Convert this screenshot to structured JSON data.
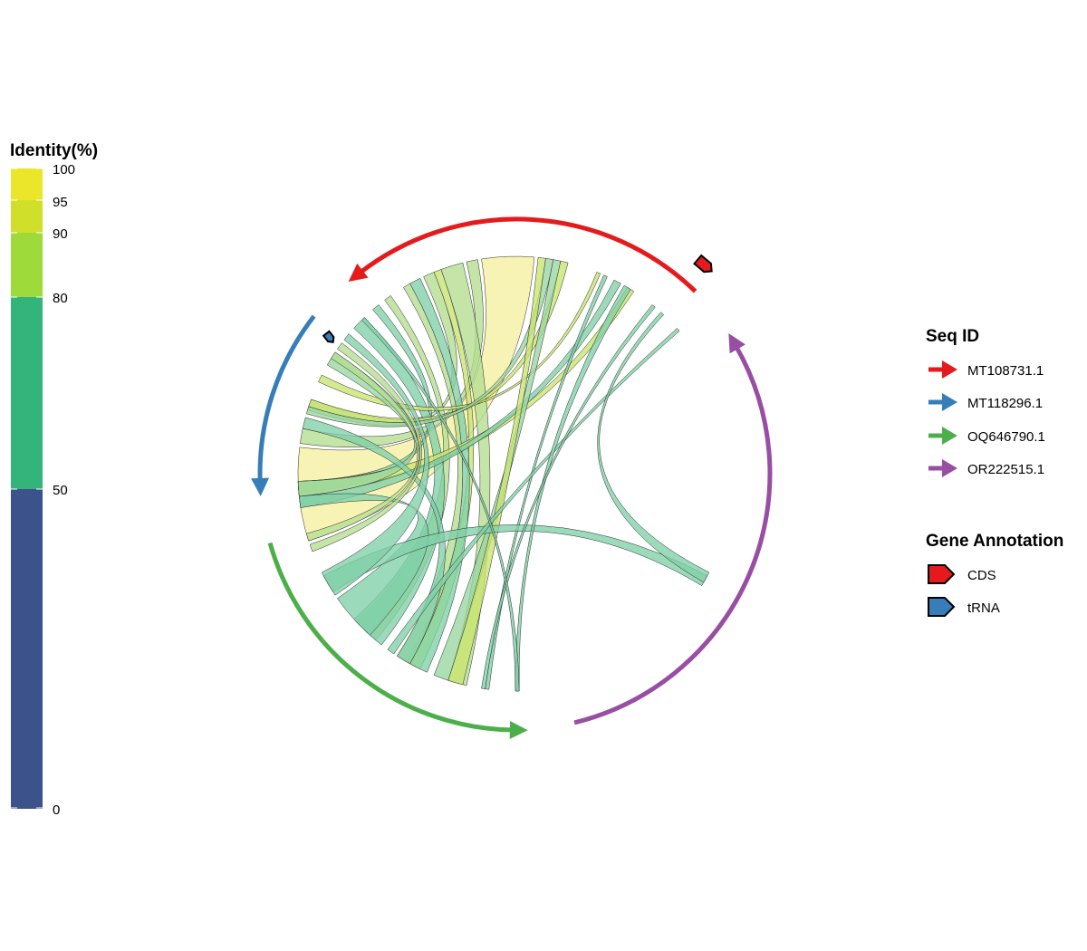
{
  "identity_legend": {
    "title": "Identity(%)",
    "ticks": [
      "100",
      "95",
      "90",
      "80",
      "50",
      "0"
    ],
    "bins": [
      {
        "from": 95,
        "to": 100,
        "color": "#ECE62A"
      },
      {
        "from": 90,
        "to": 95,
        "color": "#D0E02A"
      },
      {
        "from": 80,
        "to": 90,
        "color": "#9EDA3A"
      },
      {
        "from": 50,
        "to": 80,
        "color": "#33B47B"
      },
      {
        "from": 0,
        "to": 50,
        "color": "#3B528B"
      }
    ]
  },
  "seq_legend": {
    "title": "Seq ID",
    "items": [
      {
        "label": "MT108731.1",
        "color": "#E41A1C"
      },
      {
        "label": "MT118296.1",
        "color": "#377EB8"
      },
      {
        "label": "OQ646790.1",
        "color": "#4DAF4A"
      },
      {
        "label": "OR222515.1",
        "color": "#984EA3"
      }
    ]
  },
  "gene_legend": {
    "title": "Gene Annotation",
    "items": [
      {
        "label": "CDS",
        "color": "#E41A1C"
      },
      {
        "label": "tRNA",
        "color": "#377EB8"
      }
    ]
  },
  "gene_markers": [
    {
      "type": "CDS",
      "sequence": "MT108731.1",
      "color": "#E41A1C"
    },
    {
      "type": "tRNA",
      "sequence": "MT118296.1",
      "color": "#377EB8"
    }
  ],
  "links": [
    {
      "a1": 85,
      "a2": 99,
      "b1": 173,
      "b2": 198,
      "identity": 97
    },
    {
      "a1": 100,
      "a2": 103,
      "b1": 168,
      "b2": 172,
      "identity": 88
    },
    {
      "a1": 104,
      "a2": 110,
      "b1": 252,
      "b2": 257,
      "identity": 85
    },
    {
      "a1": 110,
      "a2": 112,
      "b1": 240,
      "b2": 244,
      "identity": 92
    },
    {
      "a1": 112,
      "a2": 115,
      "b1": 160,
      "b2": 163,
      "identity": 88
    },
    {
      "a1": 116,
      "a2": 119,
      "b1": 241,
      "b2": 246,
      "identity": 75
    },
    {
      "a1": 119,
      "a2": 121,
      "b1": 237,
      "b2": 241,
      "identity": 86
    },
    {
      "a1": 125,
      "a2": 127,
      "b1": 223,
      "b2": 230,
      "identity": 88
    },
    {
      "a1": 129,
      "a2": 131,
      "b1": 182,
      "b2": 185,
      "identity": 72
    },
    {
      "a1": 134,
      "a2": 138,
      "b1": 222,
      "b2": 232,
      "identity": 70
    },
    {
      "a1": 57,
      "a2": 59,
      "b1": 182,
      "b2": 186,
      "identity": 92
    },
    {
      "a1": 61,
      "a2": 63,
      "b1": 186,
      "b2": 189,
      "identity": 72
    },
    {
      "a1": 65,
      "a2": 66,
      "b1": 262,
      "b2": 263,
      "identity": 72
    },
    {
      "a1": 67,
      "a2": 68,
      "b1": 153,
      "b2": 155,
      "identity": 90
    },
    {
      "a1": 76,
      "a2": 78,
      "b1": 160,
      "b2": 162,
      "identity": 90
    },
    {
      "a1": 78,
      "a2": 80,
      "b1": 248,
      "b2": 252,
      "identity": 80
    },
    {
      "a1": 80,
      "a2": 82,
      "b1": 162,
      "b2": 164,
      "identity": 80
    },
    {
      "a1": 82,
      "a2": 84,
      "b1": 252,
      "b2": 256,
      "identity": 90
    },
    {
      "a1": 182,
      "a2": 186,
      "b1": 146,
      "b2": 150,
      "identity": 82
    },
    {
      "a1": 186,
      "a2": 189,
      "b1": 215,
      "b2": 228,
      "identity": 70
    },
    {
      "a1": 165,
      "a2": 168,
      "b1": 237,
      "b2": 241,
      "identity": 72
    },
    {
      "a1": 208,
      "a2": 213,
      "b1": 329,
      "b2": 332,
      "identity": 66
    },
    {
      "a1": 41,
      "a2": 42,
      "b1": 234,
      "b2": 236,
      "identity": 72
    },
    {
      "a1": 47,
      "a2": 48,
      "b1": 330,
      "b2": 333,
      "identity": 72
    },
    {
      "a1": 58,
      "a2": 60,
      "b1": 270,
      "b2": 271,
      "identity": 72
    },
    {
      "a1": 50,
      "a2": 51,
      "b1": 261,
      "b2": 262,
      "identity": 72
    },
    {
      "a1": 134,
      "a2": 135,
      "b1": 270,
      "b2": 271,
      "identity": 72
    },
    {
      "a1": 140,
      "a2": 142,
      "b1": 207,
      "b2": 214,
      "identity": 70
    },
    {
      "a1": 143,
      "a2": 145,
      "b1": 199,
      "b2": 201,
      "identity": 85
    },
    {
      "a1": 146,
      "a2": 148,
      "b1": 196,
      "b2": 198,
      "identity": 85
    }
  ]
}
